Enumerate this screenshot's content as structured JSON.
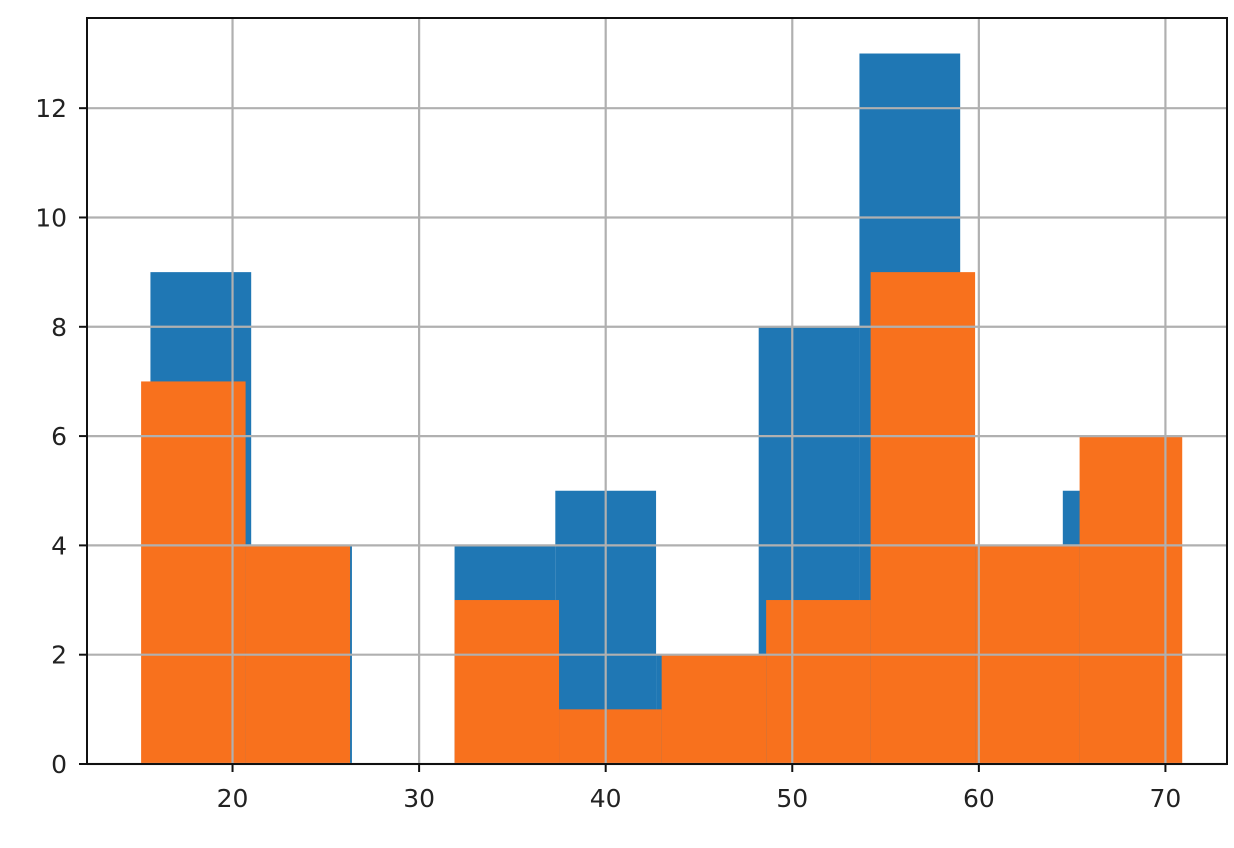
{
  "chart_data": {
    "type": "bar",
    "title": "",
    "xlabel": "",
    "ylabel": "",
    "xlim": [
      12.2,
      73.3
    ],
    "ylim": [
      0,
      13.65
    ],
    "grid": true,
    "legend": "none",
    "xticks": [
      "20",
      "30",
      "40",
      "50",
      "60",
      "70"
    ],
    "yticks": [
      "0",
      "2",
      "4",
      "6",
      "8",
      "10",
      "12"
    ],
    "series": [
      {
        "color": "#1f77b4",
        "bins": [
          {
            "x0": 15.6,
            "x1": 21.0,
            "value": 9
          },
          {
            "x0": 21.0,
            "x1": 26.4,
            "value": 4
          },
          {
            "x0": 26.4,
            "x1": 31.9,
            "value": 0
          },
          {
            "x0": 31.9,
            "x1": 37.3,
            "value": 4
          },
          {
            "x0": 37.3,
            "x1": 42.7,
            "value": 5
          },
          {
            "x0": 42.7,
            "x1": 48.2,
            "value": 2
          },
          {
            "x0": 48.2,
            "x1": 53.6,
            "value": 8
          },
          {
            "x0": 53.6,
            "x1": 59.0,
            "value": 13
          },
          {
            "x0": 59.0,
            "x1": 64.5,
            "value": 4
          },
          {
            "x0": 64.5,
            "x1": 69.9,
            "value": 5
          }
        ]
      },
      {
        "color": "#f8711d",
        "bins": [
          {
            "x0": 15.1,
            "x1": 20.7,
            "value": 7
          },
          {
            "x0": 20.7,
            "x1": 26.3,
            "value": 4
          },
          {
            "x0": 26.3,
            "x1": 31.9,
            "value": 0
          },
          {
            "x0": 31.9,
            "x1": 37.5,
            "value": 3
          },
          {
            "x0": 37.5,
            "x1": 43.0,
            "value": 1
          },
          {
            "x0": 43.0,
            "x1": 48.6,
            "value": 2
          },
          {
            "x0": 48.6,
            "x1": 54.2,
            "value": 3
          },
          {
            "x0": 54.2,
            "x1": 59.8,
            "value": 9
          },
          {
            "x0": 59.8,
            "x1": 65.4,
            "value": 4
          },
          {
            "x0": 65.4,
            "x1": 70.9,
            "value": 6
          }
        ]
      }
    ]
  }
}
